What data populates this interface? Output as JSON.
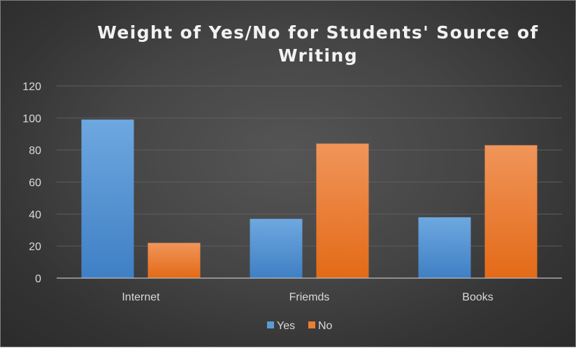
{
  "chart_data": {
    "type": "bar",
    "title": "Weight of Yes/No for Students' Source of Writing",
    "title_lines": [
      "Weight of Yes/No for Students' Source of",
      "Writing"
    ],
    "categories": [
      "Internet",
      "Friemds",
      "Books"
    ],
    "series": [
      {
        "name": "Yes",
        "values": [
          99,
          37,
          38
        ],
        "color": "#5b9bd5"
      },
      {
        "name": "No",
        "values": [
          22,
          84,
          83
        ],
        "color": "#ed7d31"
      }
    ],
    "ylim": [
      0,
      120
    ],
    "yticks": [
      0,
      20,
      40,
      60,
      80,
      100,
      120
    ],
    "grid": true,
    "legend_position": "bottom"
  }
}
